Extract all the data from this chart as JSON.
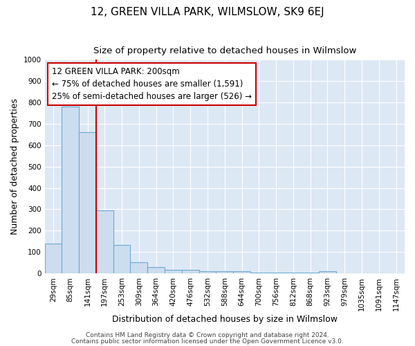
{
  "title": "12, GREEN VILLA PARK, WILMSLOW, SK9 6EJ",
  "subtitle": "Size of property relative to detached houses in Wilmslow",
  "xlabel": "Distribution of detached houses by size in Wilmslow",
  "ylabel": "Number of detached properties",
  "bar_labels": [
    "29sqm",
    "85sqm",
    "141sqm",
    "197sqm",
    "253sqm",
    "309sqm",
    "364sqm",
    "420sqm",
    "476sqm",
    "532sqm",
    "588sqm",
    "644sqm",
    "700sqm",
    "756sqm",
    "812sqm",
    "868sqm",
    "923sqm",
    "979sqm",
    "1035sqm",
    "1091sqm",
    "1147sqm"
  ],
  "bar_values": [
    140,
    780,
    660,
    295,
    135,
    52,
    30,
    18,
    18,
    12,
    10,
    10,
    5,
    5,
    5,
    5,
    10,
    0,
    0,
    0,
    0
  ],
  "bar_color": "#ccddf0",
  "bar_edge_color": "#6aaad4",
  "red_line_color": "#cc0000",
  "ylim": [
    0,
    1000
  ],
  "yticks": [
    0,
    100,
    200,
    300,
    400,
    500,
    600,
    700,
    800,
    900,
    1000
  ],
  "annotation_line1": "12 GREEN VILLA PARK: 200sqm",
  "annotation_line2": "← 75% of detached houses are smaller (1,591)",
  "annotation_line3": "25% of semi-detached houses are larger (526) →",
  "annotation_box_color": "#ffffff",
  "annotation_box_edge_color": "#cc0000",
  "footer_line1": "Contains HM Land Registry data © Crown copyright and database right 2024.",
  "footer_line2": "Contains public sector information licensed under the Open Government Licence v3.0.",
  "bg_color": "#dde8f5",
  "grid_color": "#ffffff",
  "fig_bg_color": "#ffffff",
  "title_fontsize": 11,
  "subtitle_fontsize": 9.5,
  "tick_fontsize": 7.5,
  "label_fontsize": 9,
  "footer_fontsize": 6.5,
  "annotation_fontsize": 8.5
}
